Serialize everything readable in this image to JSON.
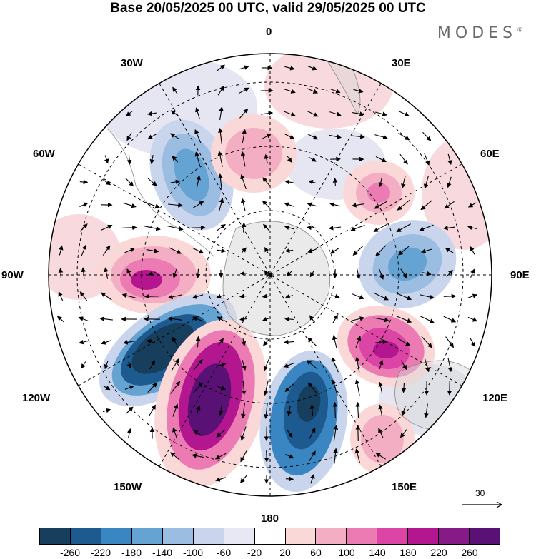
{
  "title": "Base 20/05/2025 00 UTC, valid 29/05/2025 00 UTC",
  "brand": "MODES",
  "brand_mark": "®",
  "longitude_labels": {
    "top": "0",
    "bottom": "180",
    "left": "90W",
    "right": "90E",
    "nw30": "30W",
    "ne30": "30E",
    "nw60": "60W",
    "ne60": "60E",
    "sw120": "120W",
    "se120": "120E",
    "sw150": "150W",
    "se150": "150E"
  },
  "reference_vector": {
    "value": "30"
  },
  "colorbar": {
    "colors": [
      "#173e5c",
      "#1c5a8f",
      "#3a86c2",
      "#65a3d3",
      "#9bbde2",
      "#c9d5ec",
      "#e8e8f4",
      "#ffffff",
      "#fbd8d8",
      "#f4aec4",
      "#ec7bb3",
      "#dc45a6",
      "#b4168f",
      "#861a87",
      "#5a1175"
    ],
    "tick_labels": [
      "-260",
      "-220",
      "-180",
      "-140",
      "-100",
      "-60",
      "-20",
      "20",
      "60",
      "100",
      "140",
      "180",
      "220",
      "260"
    ]
  },
  "map": {
    "projection": "south-polar-stereographic",
    "field_colors": {
      "strong_neg": "#173e5c",
      "neg3": "#1c5a8f",
      "neg2": "#3a86c2",
      "neg1": "#9bbde2",
      "neg0": "#dfe2f0",
      "pos0": "#f8d9dd",
      "pos1": "#f4aec4",
      "pos2": "#ec7bb3",
      "pos3": "#dc45a6",
      "strong_pos": "#861a87"
    }
  }
}
